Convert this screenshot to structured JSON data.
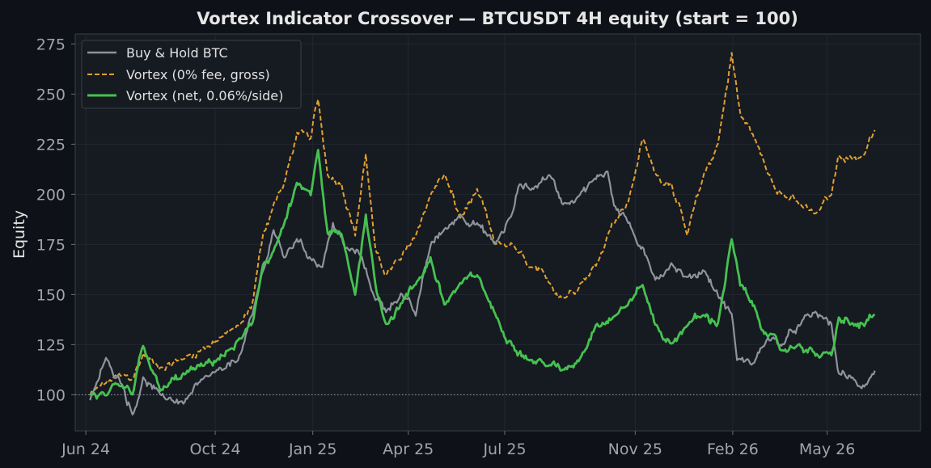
{
  "chart_data": {
    "type": "line",
    "title": "Vortex Indicator Crossover — BTCUSDT 4H equity (start = 100)",
    "xlabel": "",
    "ylabel": "Equity",
    "x_ticks": [
      "Jun 24",
      "Oct 24",
      "Jan 25",
      "Apr 25",
      "Jul 25",
      "Nov 25",
      "Feb 26",
      "May 26"
    ],
    "y_ticks": [
      "100",
      "125",
      "150",
      "175",
      "200",
      "225",
      "250",
      "275"
    ],
    "ylim": [
      82,
      280
    ],
    "xlim": [
      "2024-05-22",
      "2026-07-28"
    ],
    "reference_line": 100,
    "grid": true,
    "legend_position": "top-left",
    "series": [
      {
        "name": "Buy & Hold BTC",
        "color": "#8f949c",
        "style": "solid",
        "points": [
          [
            "2024-06-05",
            97
          ],
          [
            "2024-06-20",
            118
          ],
          [
            "2024-07-05",
            106
          ],
          [
            "2024-07-15",
            90
          ],
          [
            "2024-07-25",
            108
          ],
          [
            "2024-08-10",
            100
          ],
          [
            "2024-09-01",
            96
          ],
          [
            "2024-09-20",
            108
          ],
          [
            "2024-10-10",
            113
          ],
          [
            "2024-10-25",
            120
          ],
          [
            "2024-11-05",
            140
          ],
          [
            "2024-11-15",
            162
          ],
          [
            "2024-11-25",
            182
          ],
          [
            "2024-12-05",
            168
          ],
          [
            "2024-12-17",
            178
          ],
          [
            "2024-12-30",
            168
          ],
          [
            "2025-01-10",
            164
          ],
          [
            "2025-01-20",
            185
          ],
          [
            "2025-02-01",
            173
          ],
          [
            "2025-02-15",
            170
          ],
          [
            "2025-03-01",
            148
          ],
          [
            "2025-03-11",
            142
          ],
          [
            "2025-03-25",
            150
          ],
          [
            "2025-04-08",
            140
          ],
          [
            "2025-04-22",
            175
          ],
          [
            "2025-05-05",
            182
          ],
          [
            "2025-05-20",
            190
          ],
          [
            "2025-06-05",
            185
          ],
          [
            "2025-06-22",
            175
          ],
          [
            "2025-07-08",
            190
          ],
          [
            "2025-07-15",
            205
          ],
          [
            "2025-07-28",
            203
          ],
          [
            "2025-08-12",
            210
          ],
          [
            "2025-08-25",
            195
          ],
          [
            "2025-09-10",
            200
          ],
          [
            "2025-09-25",
            208
          ],
          [
            "2025-10-06",
            212
          ],
          [
            "2025-10-12",
            195
          ],
          [
            "2025-10-22",
            190
          ],
          [
            "2025-11-04",
            175
          ],
          [
            "2025-11-20",
            158
          ],
          [
            "2025-12-05",
            165
          ],
          [
            "2025-12-20",
            158
          ],
          [
            "2026-01-05",
            162
          ],
          [
            "2026-01-18",
            150
          ],
          [
            "2026-01-31",
            140
          ],
          [
            "2026-02-05",
            118
          ],
          [
            "2026-02-20",
            115
          ],
          [
            "2026-03-05",
            128
          ],
          [
            "2026-03-20",
            125
          ],
          [
            "2026-04-05",
            135
          ],
          [
            "2026-04-20",
            141
          ],
          [
            "2026-05-05",
            135
          ],
          [
            "2026-05-12",
            110
          ],
          [
            "2026-05-25",
            108
          ],
          [
            "2026-06-05",
            104
          ],
          [
            "2026-06-15",
            112
          ]
        ]
      },
      {
        "name": "Vortex (0% fee, gross)",
        "color": "#e0a030",
        "style": "dashed",
        "points": [
          [
            "2024-06-05",
            100
          ],
          [
            "2024-06-20",
            106
          ],
          [
            "2024-07-05",
            110
          ],
          [
            "2024-07-15",
            108
          ],
          [
            "2024-07-25",
            120
          ],
          [
            "2024-08-10",
            113
          ],
          [
            "2024-09-01",
            118
          ],
          [
            "2024-09-20",
            123
          ],
          [
            "2024-10-10",
            130
          ],
          [
            "2024-10-25",
            135
          ],
          [
            "2024-11-05",
            145
          ],
          [
            "2024-11-15",
            180
          ],
          [
            "2024-11-25",
            195
          ],
          [
            "2024-12-05",
            205
          ],
          [
            "2024-12-17",
            230
          ],
          [
            "2024-12-30",
            228
          ],
          [
            "2025-01-06",
            248
          ],
          [
            "2025-01-15",
            210
          ],
          [
            "2025-01-28",
            205
          ],
          [
            "2025-02-10",
            180
          ],
          [
            "2025-02-20",
            220
          ],
          [
            "2025-03-01",
            172
          ],
          [
            "2025-03-11",
            160
          ],
          [
            "2025-03-25",
            168
          ],
          [
            "2025-04-08",
            180
          ],
          [
            "2025-04-22",
            200
          ],
          [
            "2025-05-05",
            210
          ],
          [
            "2025-05-20",
            188
          ],
          [
            "2025-06-05",
            202
          ],
          [
            "2025-06-22",
            175
          ],
          [
            "2025-07-08",
            175
          ],
          [
            "2025-07-22",
            165
          ],
          [
            "2025-08-10",
            158
          ],
          [
            "2025-08-25",
            148
          ],
          [
            "2025-09-10",
            155
          ],
          [
            "2025-09-25",
            165
          ],
          [
            "2025-10-10",
            185
          ],
          [
            "2025-10-25",
            195
          ],
          [
            "2025-11-08",
            228
          ],
          [
            "2025-11-20",
            210
          ],
          [
            "2025-12-05",
            205
          ],
          [
            "2025-12-20",
            180
          ],
          [
            "2026-01-05",
            210
          ],
          [
            "2026-01-18",
            225
          ],
          [
            "2026-01-31",
            270
          ],
          [
            "2026-02-08",
            240
          ],
          [
            "2026-02-20",
            230
          ],
          [
            "2026-03-05",
            212
          ],
          [
            "2026-03-20",
            200
          ],
          [
            "2026-04-05",
            195
          ],
          [
            "2026-04-20",
            190
          ],
          [
            "2026-05-05",
            200
          ],
          [
            "2026-05-12",
            220
          ],
          [
            "2026-05-25",
            218
          ],
          [
            "2026-06-05",
            220
          ],
          [
            "2026-06-15",
            232
          ]
        ]
      },
      {
        "name": "Vortex (net, 0.06%/side)",
        "color": "#45c150",
        "style": "solid",
        "points": [
          [
            "2024-06-05",
            100
          ],
          [
            "2024-06-20",
            100
          ],
          [
            "2024-07-05",
            104
          ],
          [
            "2024-07-15",
            100
          ],
          [
            "2024-07-25",
            125
          ],
          [
            "2024-08-10",
            102
          ],
          [
            "2024-09-01",
            110
          ],
          [
            "2024-09-20",
            115
          ],
          [
            "2024-10-10",
            120
          ],
          [
            "2024-10-25",
            128
          ],
          [
            "2024-11-05",
            135
          ],
          [
            "2024-11-15",
            165
          ],
          [
            "2024-11-25",
            172
          ],
          [
            "2024-12-05",
            185
          ],
          [
            "2024-12-17",
            205
          ],
          [
            "2024-12-30",
            200
          ],
          [
            "2025-01-06",
            222
          ],
          [
            "2025-01-15",
            180
          ],
          [
            "2025-01-28",
            180
          ],
          [
            "2025-02-10",
            150
          ],
          [
            "2025-02-20",
            190
          ],
          [
            "2025-03-01",
            155
          ],
          [
            "2025-03-11",
            135
          ],
          [
            "2025-03-25",
            145
          ],
          [
            "2025-04-08",
            155
          ],
          [
            "2025-04-22",
            168
          ],
          [
            "2025-05-05",
            145
          ],
          [
            "2025-05-20",
            155
          ],
          [
            "2025-06-05",
            160
          ],
          [
            "2025-06-22",
            140
          ],
          [
            "2025-07-08",
            125
          ],
          [
            "2025-07-22",
            118
          ],
          [
            "2025-08-10",
            115
          ],
          [
            "2025-08-25",
            112
          ],
          [
            "2025-09-10",
            118
          ],
          [
            "2025-09-25",
            135
          ],
          [
            "2025-10-10",
            138
          ],
          [
            "2025-10-25",
            145
          ],
          [
            "2025-11-08",
            155
          ],
          [
            "2025-11-20",
            135
          ],
          [
            "2025-12-05",
            125
          ],
          [
            "2025-12-20",
            135
          ],
          [
            "2026-01-05",
            140
          ],
          [
            "2026-01-18",
            135
          ],
          [
            "2026-01-31",
            178
          ],
          [
            "2026-02-08",
            155
          ],
          [
            "2026-02-20",
            145
          ],
          [
            "2026-03-05",
            130
          ],
          [
            "2026-03-20",
            122
          ],
          [
            "2026-04-05",
            125
          ],
          [
            "2026-04-20",
            120
          ],
          [
            "2026-05-05",
            120
          ],
          [
            "2026-05-12",
            138
          ],
          [
            "2026-05-25",
            135
          ],
          [
            "2026-06-05",
            135
          ],
          [
            "2026-06-15",
            140
          ]
        ]
      }
    ]
  },
  "colors": {
    "page_background": "#0e1117",
    "plot_background": "#161a21",
    "grid": "#252a33",
    "axis": "#3a3f48"
  }
}
